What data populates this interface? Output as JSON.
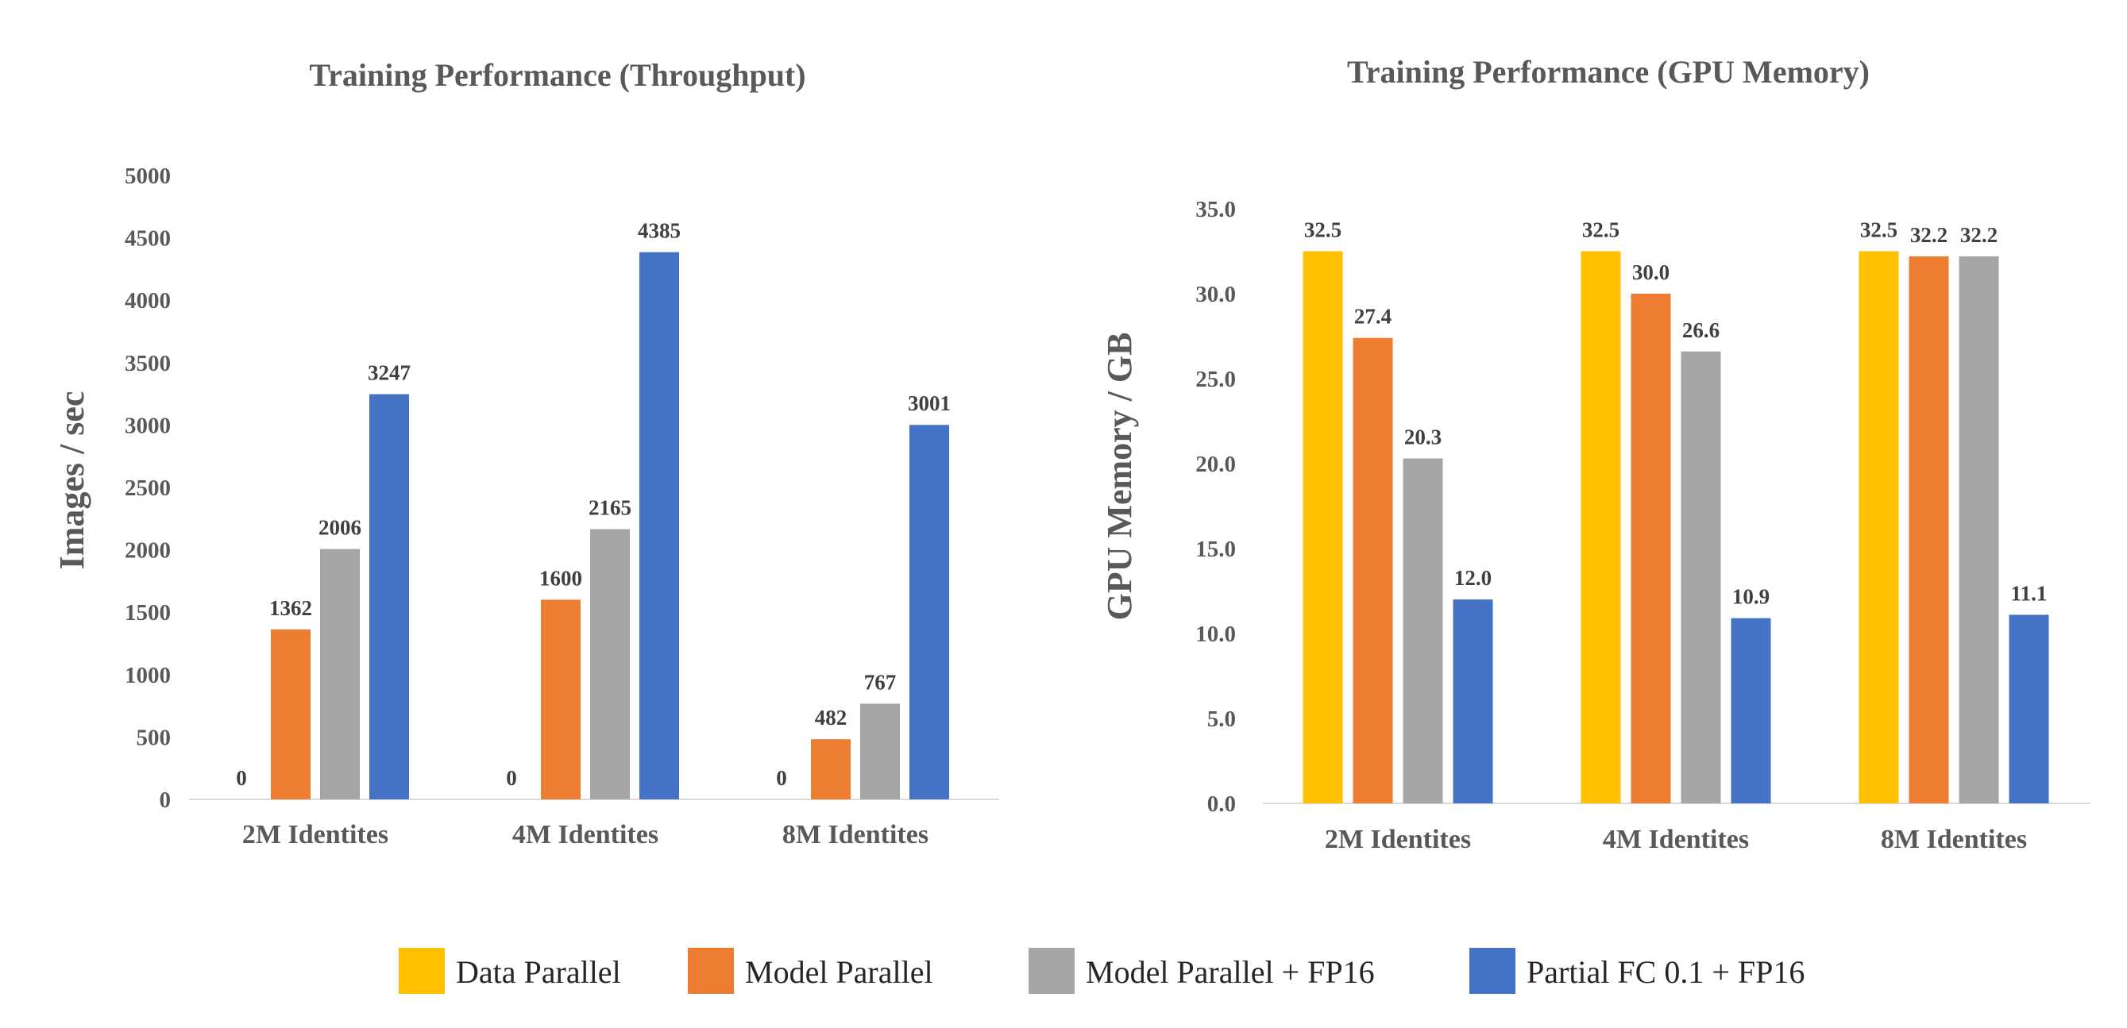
{
  "colors": {
    "Data Parallel": "#ffc000",
    "Model Parallel": "#ed7d31",
    "Model Parallel + FP16": "#a5a5a5",
    "Partial FC 0.1 + FP16": "#4472c4"
  },
  "legend": {
    "items": [
      {
        "label": "Data Parallel",
        "color": "#ffc000"
      },
      {
        "label": "Model Parallel",
        "color": "#ed7d31"
      },
      {
        "label": "Model Parallel + FP16",
        "color": "#a5a5a5"
      },
      {
        "label": "Partial FC 0.1 + FP16",
        "color": "#4472c4"
      }
    ],
    "placement": "bottom"
  },
  "chart_data": [
    {
      "type": "bar",
      "title": "Training Performance (Throughput)",
      "xlabel": "",
      "ylabel": "Images / sec",
      "ylim": [
        0,
        5000
      ],
      "yticks": [
        "0",
        "500",
        "1000",
        "1500",
        "2000",
        "2500",
        "3000",
        "3500",
        "4000",
        "4500",
        "5000"
      ],
      "categories": [
        "2M Identites",
        "4M Identites",
        "8M Identites"
      ],
      "grid": false,
      "series": [
        {
          "name": "Data Parallel",
          "values": [
            0,
            0,
            0
          ],
          "labels": [
            "0",
            "0",
            "0"
          ]
        },
        {
          "name": "Model Parallel",
          "values": [
            1362,
            1600,
            482
          ],
          "labels": [
            "1362",
            "1600",
            "482"
          ]
        },
        {
          "name": "Model Parallel + FP16",
          "values": [
            2006,
            2165,
            767
          ],
          "labels": [
            "2006",
            "2165",
            "767"
          ]
        },
        {
          "name": "Partial FC 0.1 + FP16",
          "values": [
            3247,
            4385,
            3001
          ],
          "labels": [
            "3247",
            "4385",
            "3001"
          ]
        }
      ]
    },
    {
      "type": "bar",
      "title": "Training Performance (GPU Memory)",
      "xlabel": "",
      "ylabel": "GPU Memory / GB",
      "ylim": [
        0,
        35
      ],
      "yticks": [
        "0.0",
        "5.0",
        "10.0",
        "15.0",
        "20.0",
        "25.0",
        "30.0",
        "35.0"
      ],
      "categories": [
        "2M Identites",
        "4M Identites",
        "8M Identites"
      ],
      "grid": false,
      "series": [
        {
          "name": "Data Parallel",
          "values": [
            32.5,
            32.5,
            32.5
          ],
          "labels": [
            "32.5",
            "32.5",
            "32.5"
          ]
        },
        {
          "name": "Model Parallel",
          "values": [
            27.4,
            30.0,
            32.2
          ],
          "labels": [
            "27.4",
            "30.0",
            "32.2"
          ]
        },
        {
          "name": "Model Parallel + FP16",
          "values": [
            20.3,
            26.6,
            32.2
          ],
          "labels": [
            "20.3",
            "26.6",
            "32.2"
          ]
        },
        {
          "name": "Partial FC 0.1 + FP16",
          "values": [
            12.0,
            10.9,
            11.1
          ],
          "labels": [
            "12.0",
            "10.9",
            "11.1"
          ]
        }
      ]
    }
  ]
}
